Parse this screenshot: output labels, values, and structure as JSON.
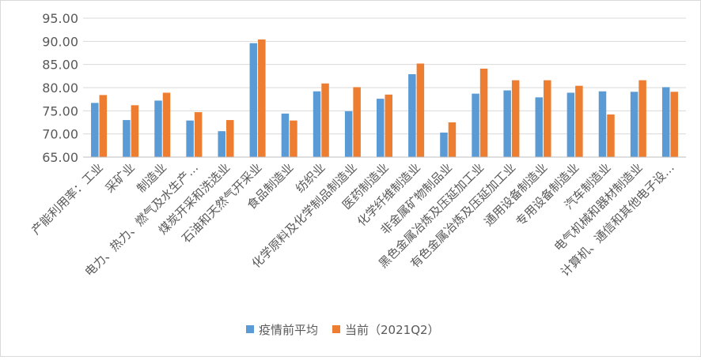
{
  "chart_data": {
    "type": "bar",
    "title": "",
    "xlabel": "",
    "ylabel": "",
    "ylim": [
      65,
      95
    ],
    "yticks": [
      "65.00",
      "70.00",
      "75.00",
      "80.00",
      "85.00",
      "90.00",
      "95.00"
    ],
    "grid": true,
    "legend_position": "bottom",
    "categories": [
      "产能利用率：工业",
      "采矿业",
      "制造业",
      "电力、热力、燃气及水生产…",
      "煤炭开采和洗选业",
      "石油和天然气开采业",
      "食品制造业",
      "纺织业",
      "化学原料及化学制品制造业",
      "医药制造业",
      "化学纤维制造业",
      "非金属矿物制品业",
      "黑色金属冶炼及压延加工业",
      "有色金属冶炼及压延加工业",
      "通用设备制造业",
      "专用设备制造业",
      "汽车制造业",
      "电气机械和器材制造业",
      "计算机、通信和其他电子设…"
    ],
    "series": [
      {
        "name": "疫情前平均",
        "color": "#5b9bd5",
        "values": [
          76.7,
          73.0,
          77.2,
          72.9,
          70.6,
          89.6,
          74.4,
          79.2,
          74.9,
          77.6,
          82.9,
          70.3,
          78.7,
          79.4,
          77.9,
          78.9,
          79.2,
          79.1,
          80.1
        ]
      },
      {
        "name": "当前（2021Q2）",
        "color": "#ed7d31",
        "values": [
          78.4,
          76.2,
          78.9,
          74.7,
          73.0,
          90.4,
          72.9,
          80.9,
          80.1,
          78.5,
          85.2,
          72.5,
          84.1,
          81.6,
          81.6,
          80.4,
          74.2,
          81.6,
          79.1
        ]
      }
    ]
  }
}
